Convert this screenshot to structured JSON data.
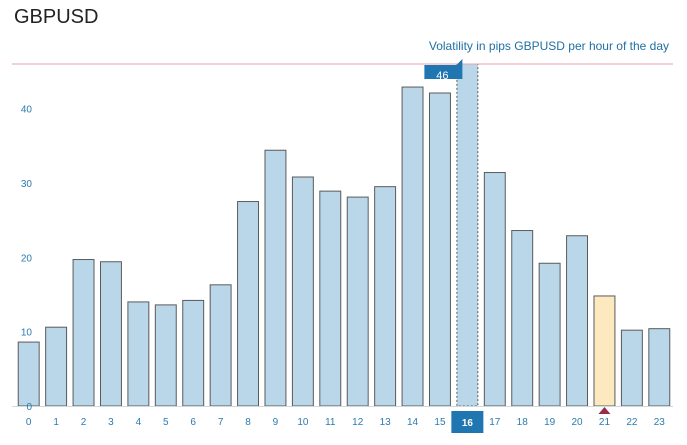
{
  "page": {
    "title": "GBPUSD"
  },
  "chart_data": {
    "type": "bar",
    "title": "GBPUSD",
    "subtitle": "Volatility in pips GBPUSD per hour of the day",
    "xlabel": "",
    "ylabel": "",
    "categories": [
      "0",
      "1",
      "2",
      "3",
      "4",
      "5",
      "6",
      "7",
      "8",
      "9",
      "10",
      "11",
      "12",
      "13",
      "14",
      "15",
      "16",
      "17",
      "18",
      "19",
      "20",
      "21",
      "22",
      "23"
    ],
    "values": [
      8.6,
      10.6,
      19.7,
      19.4,
      14.0,
      13.6,
      14.2,
      16.3,
      27.5,
      34.4,
      30.8,
      28.9,
      28.1,
      29.5,
      42.9,
      42.1,
      46,
      31.4,
      23.6,
      19.2,
      22.9,
      14.8,
      10.2,
      10.4
    ],
    "ylim": [
      0,
      46
    ],
    "yticks": [
      0,
      10,
      20,
      30,
      40
    ],
    "max_line_value": 46,
    "highlighted_category": "16",
    "tooltip_value": "46",
    "current_hour_category": "21",
    "colors": {
      "bar_fill": "#bad7ea",
      "current_bar_fill": "#fde9c0",
      "highlight_fill": "#1f76b1",
      "max_line": "#e6a0a8",
      "marker": "#9b2b4a"
    }
  }
}
